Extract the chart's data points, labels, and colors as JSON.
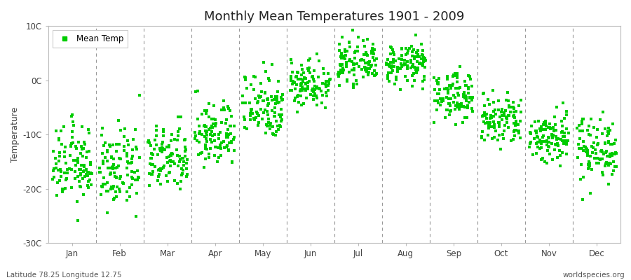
{
  "title": "Monthly Mean Temperatures 1901 - 2009",
  "ylabel": "Temperature",
  "subtitle_left": "Latitude 78.25 Longitude 12.75",
  "subtitle_right": "worldspecies.org",
  "legend_label": "Mean Temp",
  "marker_color": "#00cc00",
  "background_color": "#ffffff",
  "plot_bg_color": "#ffffff",
  "ylim": [
    -30,
    10
  ],
  "ytick_labels": [
    "-30C",
    "-20C",
    "-10C",
    "0C",
    "10C"
  ],
  "ytick_values": [
    -30,
    -20,
    -10,
    0,
    10
  ],
  "months": [
    "Jan",
    "Feb",
    "Mar",
    "Apr",
    "May",
    "Jun",
    "Jul",
    "Aug",
    "Sep",
    "Oct",
    "Nov",
    "Dec"
  ],
  "month_centers": [
    1,
    2,
    3,
    4,
    5,
    6,
    7,
    8,
    9,
    10,
    11,
    12
  ],
  "mean_temps": [
    -15.5,
    -16.5,
    -14.5,
    -10.0,
    -4.5,
    -0.5,
    3.2,
    3.0,
    -2.8,
    -7.5,
    -10.5,
    -12.5
  ],
  "std_temps": [
    3.5,
    3.5,
    3.0,
    3.0,
    3.2,
    2.2,
    1.8,
    1.8,
    2.2,
    2.5,
    2.5,
    3.0
  ],
  "n_years": 109,
  "seed": 12345,
  "marker_size": 5,
  "dpi": 100,
  "figsize": [
    9.0,
    4.0
  ]
}
